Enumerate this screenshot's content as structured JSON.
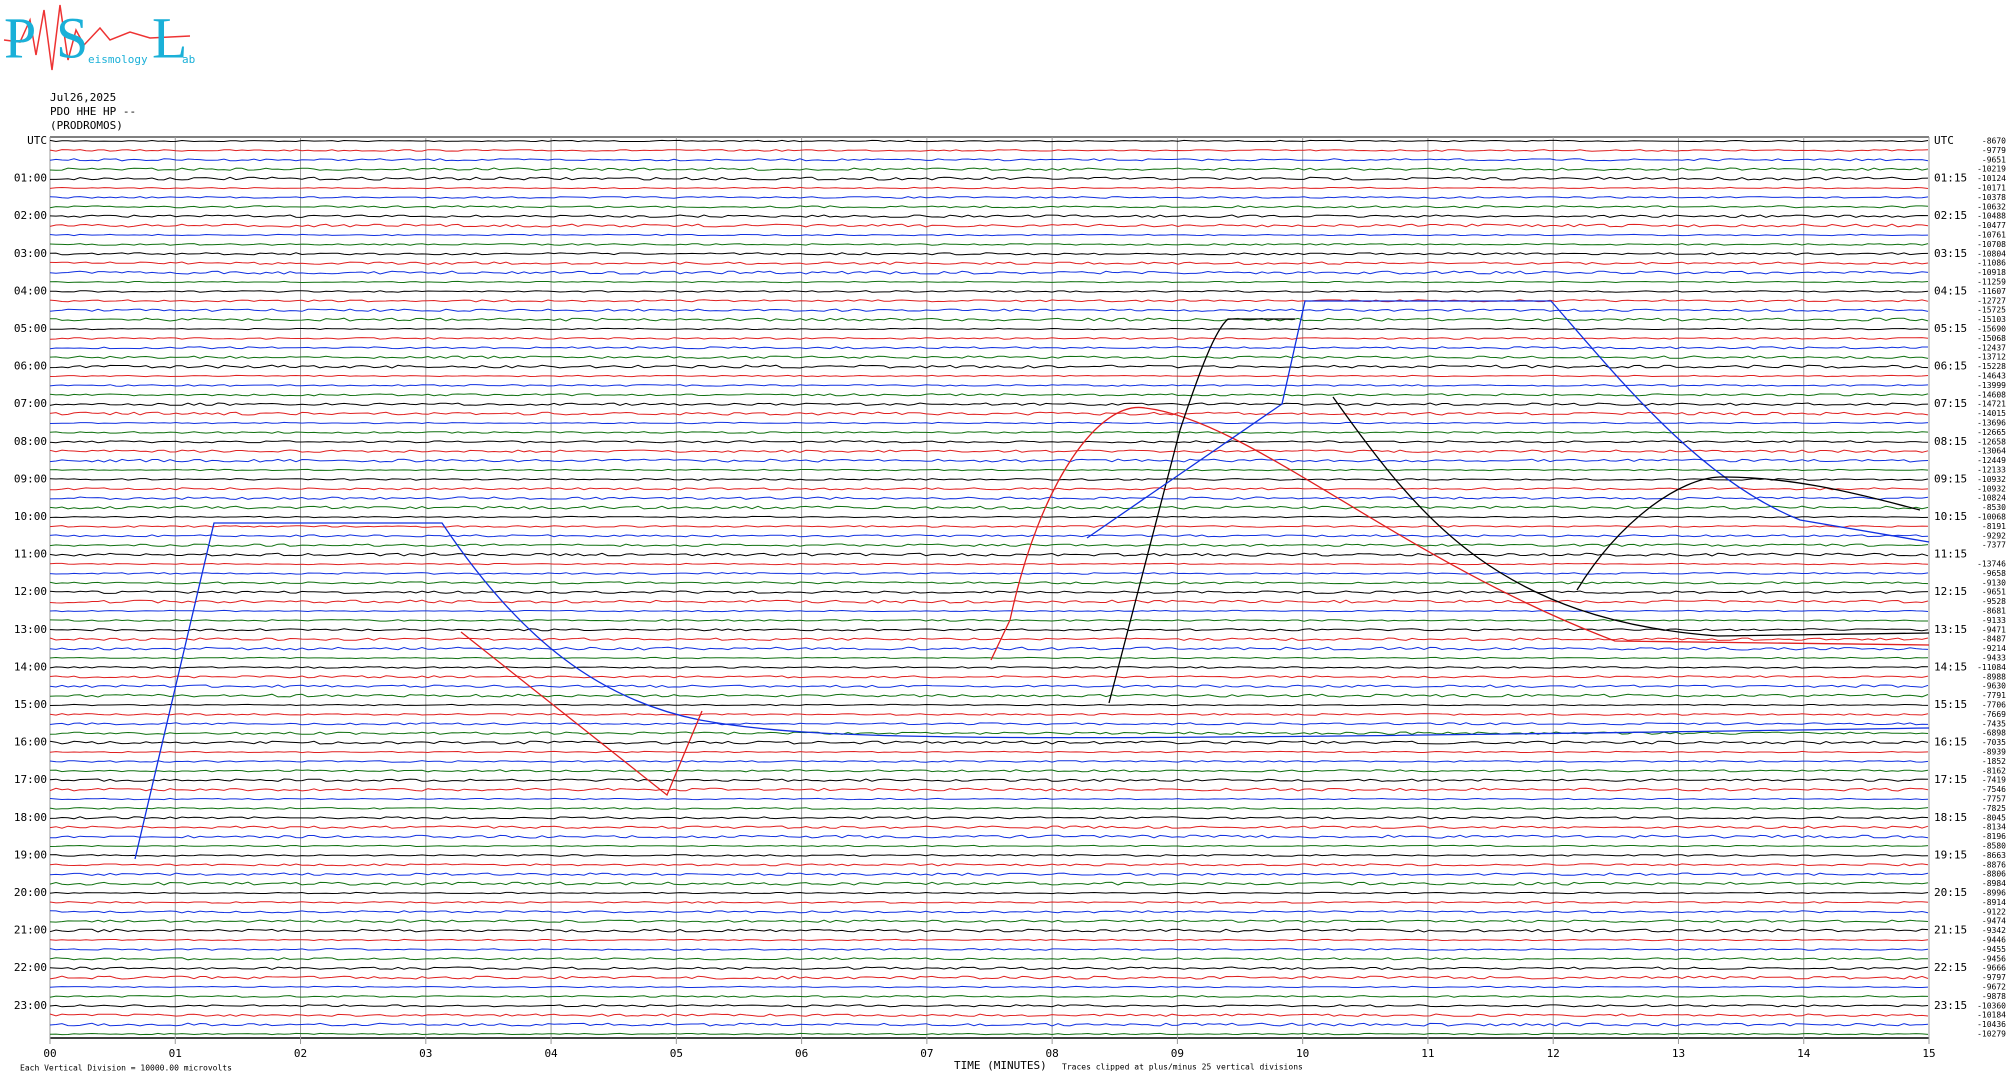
{
  "logo": {
    "letters": [
      "P",
      "S",
      "L"
    ],
    "words": [
      "eismology",
      "ab"
    ]
  },
  "header": {
    "date": "Jul26,2025",
    "station": "PDO HHE HP --",
    "location": "(PRODROMOS)"
  },
  "left_labels": [
    "UTC",
    "01:00",
    "02:00",
    "03:00",
    "04:00",
    "05:00",
    "06:00",
    "07:00",
    "08:00",
    "09:00",
    "10:00",
    "11:00",
    "12:00",
    "13:00",
    "14:00",
    "15:00",
    "16:00",
    "17:00",
    "18:00",
    "19:00",
    "20:00",
    "21:00",
    "22:00",
    "23:00"
  ],
  "right_labels": [
    "UTC",
    "01:15",
    "02:15",
    "03:15",
    "04:15",
    "05:15",
    "06:15",
    "07:15",
    "08:15",
    "09:15",
    "10:15",
    "11:15",
    "12:15",
    "13:15",
    "14:15",
    "15:15",
    "16:15",
    "17:15",
    "18:15",
    "19:15",
    "20:15",
    "21:15",
    "22:15",
    "23:15"
  ],
  "offsets": [
    -8670,
    -9779,
    -9651,
    -10219,
    -10124,
    -10171,
    -10378,
    -10632,
    -10488,
    -10477,
    -10761,
    -10708,
    -10804,
    -11086,
    -10918,
    -11259,
    -11607,
    -12727,
    -15725,
    -15103,
    -15690,
    -15068,
    -12437,
    -13712,
    -15228,
    -14643,
    -13999,
    -14608,
    -14721,
    -14015,
    -13696,
    -12665,
    -12658,
    -13064,
    -12449,
    -12133,
    -10932,
    -10932,
    -10824,
    -8530,
    -10068,
    -8191,
    -9292,
    -7377,
    null,
    -13746,
    -9658,
    -9130,
    -9651,
    -9528,
    -8681,
    -9133,
    -9471,
    -8487,
    -9214,
    -9433,
    -11084,
    -8988,
    -9630,
    -7791,
    -7706,
    -7669,
    -7435,
    -6898,
    -7035,
    -8939,
    -1852,
    -8162,
    -7419,
    -7546,
    -7757,
    -7825,
    -8045,
    -8134,
    -8196,
    -8580,
    -8663,
    -8876,
    -8806,
    -8984,
    -8996,
    -8914,
    -9122,
    -9474,
    -9342,
    -9446,
    -9455,
    -9456,
    -9666,
    -9797,
    -9672,
    -9878,
    -10360,
    -10184,
    -10436,
    -10279
  ],
  "x_labels": [
    "00",
    "01",
    "02",
    "03",
    "04",
    "05",
    "06",
    "07",
    "08",
    "09",
    "10",
    "11",
    "12",
    "13",
    "14",
    "15"
  ],
  "footer": {
    "scale": "Each Vertical Division = 10000.00 microvolts",
    "axis_title": "TIME (MINUTES)",
    "clip_note": "Traces clipped at plus/minus 25 vertical divisions"
  }
}
